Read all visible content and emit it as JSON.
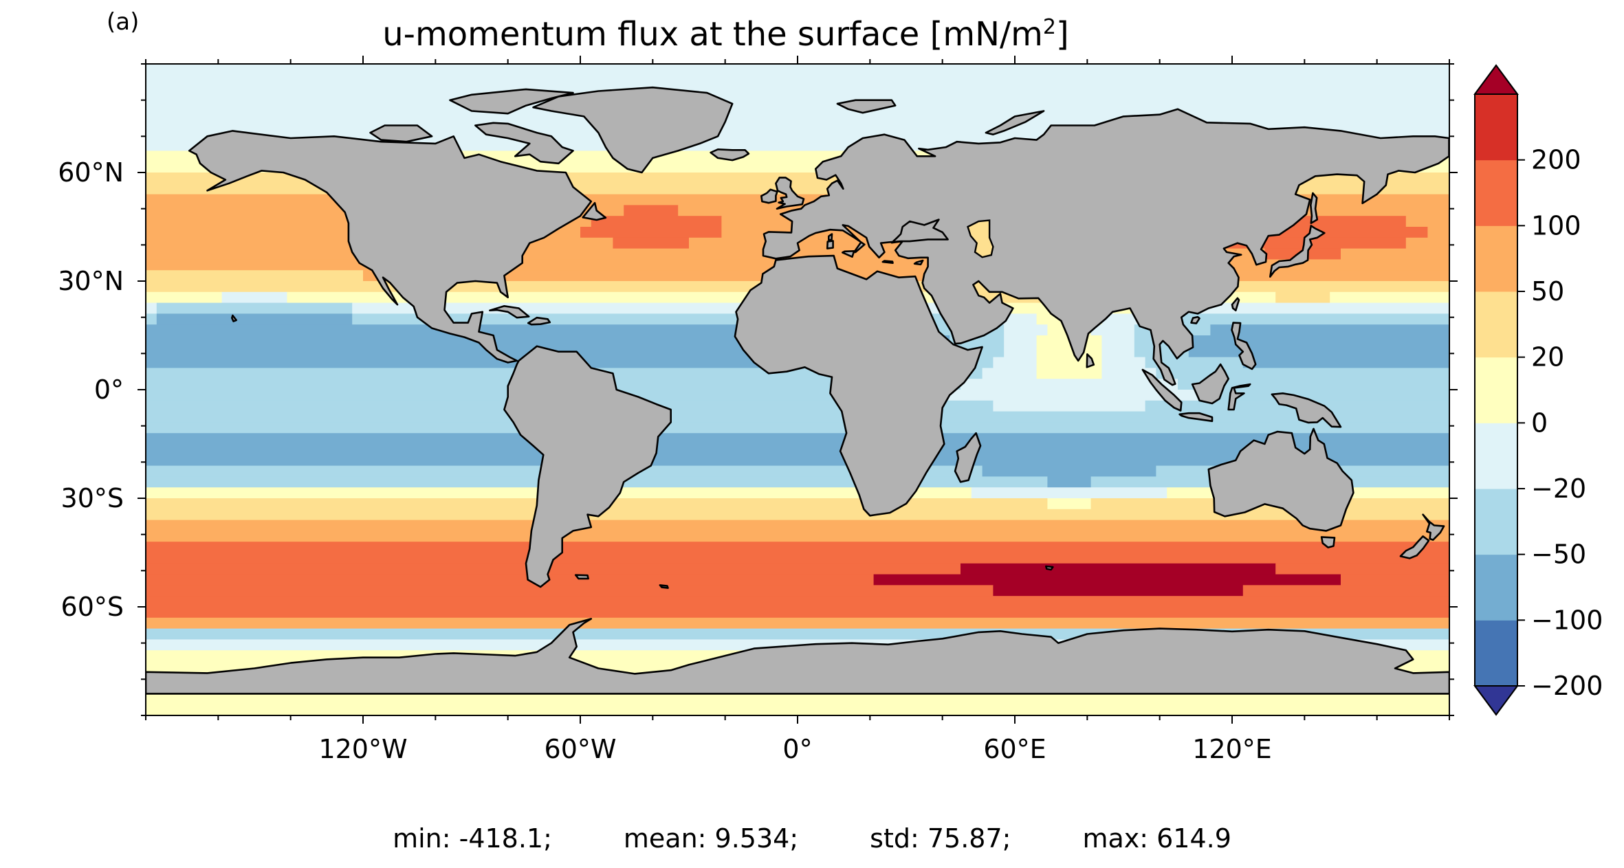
{
  "figure": {
    "panel_label": "(a)",
    "title_main": "u-momentum flux at the surface [mN/m",
    "title_sup": "2",
    "title_end": "]"
  },
  "map": {
    "projection": "PlateCarree",
    "lon_range": [
      -180,
      180
    ],
    "lat_range": [
      -90,
      90
    ],
    "land_color": "#b2b2b2",
    "coastline_color": "#000000"
  },
  "axes": {
    "x_ticks": [
      {
        "value": -120,
        "label": "120°W"
      },
      {
        "value": -60,
        "label": "60°W"
      },
      {
        "value": 0,
        "label": "0°"
      },
      {
        "value": 60,
        "label": "60°E"
      },
      {
        "value": 120,
        "label": "120°E"
      }
    ],
    "y_ticks": [
      {
        "value": 60,
        "label": "60°N"
      },
      {
        "value": 30,
        "label": "30°N"
      },
      {
        "value": 0,
        "label": "0°"
      },
      {
        "value": -30,
        "label": "30°S"
      },
      {
        "value": -60,
        "label": "60°S"
      }
    ]
  },
  "colorbar": {
    "levels": [
      -200,
      -100,
      -50,
      -20,
      0,
      20,
      50,
      100,
      200
    ],
    "labels": [
      "−200",
      "−100",
      "−50",
      "−20",
      "0",
      "20",
      "50",
      "100",
      "200"
    ],
    "colors": [
      "#4575b4",
      "#74add1",
      "#abd9e9",
      "#e0f3f8",
      "#ffffbf",
      "#fee090",
      "#fdae61",
      "#f46d43",
      "#d73027"
    ],
    "under_color": "#313695",
    "over_color": "#a50026",
    "extend": "both"
  },
  "stats": {
    "min": "min: -418.1;",
    "mean": "mean: 9.534;",
    "std": "std: 75.87;",
    "max": "max: 614.9"
  }
}
